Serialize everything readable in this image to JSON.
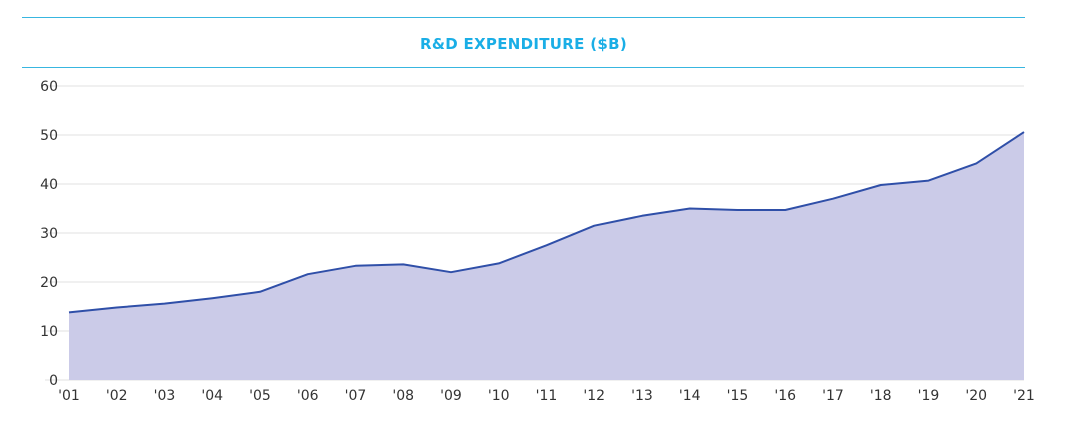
{
  "chart_data": {
    "type": "area",
    "title": "R&D EXPENDITURE ($B)",
    "xlabel": "",
    "ylabel": "",
    "categories": [
      "'01",
      "'02",
      "'03",
      "'04",
      "'05",
      "'06",
      "'07",
      "'08",
      "'09",
      "'10",
      "'11",
      "'12",
      "'13",
      "'14",
      "'15",
      "'16",
      "'17",
      "'18",
      "'19",
      "'20",
      "'21"
    ],
    "values": [
      13.8,
      14.8,
      15.6,
      16.7,
      18.0,
      21.6,
      23.3,
      23.6,
      22.0,
      23.8,
      27.5,
      31.5,
      33.5,
      35.0,
      34.7,
      34.7,
      37.0,
      39.8,
      40.7,
      44.2,
      50.6
    ],
    "ylim": [
      0,
      60
    ],
    "yticks": [
      0,
      10,
      20,
      30,
      40,
      50,
      60
    ],
    "grid": true,
    "colors": {
      "line": "#2f4fa8",
      "fill": "#cbcbe8",
      "title": "#1aaee6",
      "rule": "#38b6e0",
      "grid": "#e2e2e2"
    }
  }
}
